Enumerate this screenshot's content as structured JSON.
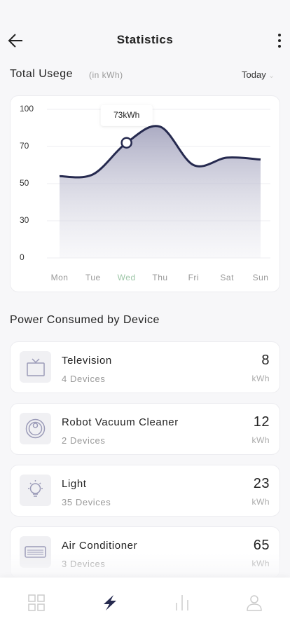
{
  "header": {
    "title": "Statistics"
  },
  "usage": {
    "title": "Total Usege",
    "unit": "(in kWh)",
    "period": "Today"
  },
  "chart_data": {
    "type": "line",
    "categories": [
      "Mon",
      "Tue",
      "Wed",
      "Thu",
      "Fri",
      "Sat",
      "Sun"
    ],
    "values": [
      54,
      55,
      73,
      86,
      60,
      64,
      63
    ],
    "value_labels": [
      null,
      null,
      "73kWh",
      null,
      null,
      null,
      null
    ],
    "ylim": [
      0,
      100
    ],
    "yticks": [
      0,
      30,
      50,
      70,
      100
    ],
    "grid": true,
    "color": "#262a4f"
  },
  "devices": {
    "title": "Power Consumed by Device",
    "items": [
      {
        "name": "Television",
        "count": "4 Devices",
        "value": 8,
        "unit": "kWh"
      },
      {
        "name": "Robot Vacuum Cleaner",
        "count": "2 Devices",
        "value": 12,
        "unit": "kWh"
      },
      {
        "name": "Light",
        "count": "35 Devices",
        "value": 23,
        "unit": "kWh"
      },
      {
        "name": "Air Conditioner",
        "count": "3 Devices",
        "value": 65,
        "unit": "kWh"
      }
    ]
  }
}
